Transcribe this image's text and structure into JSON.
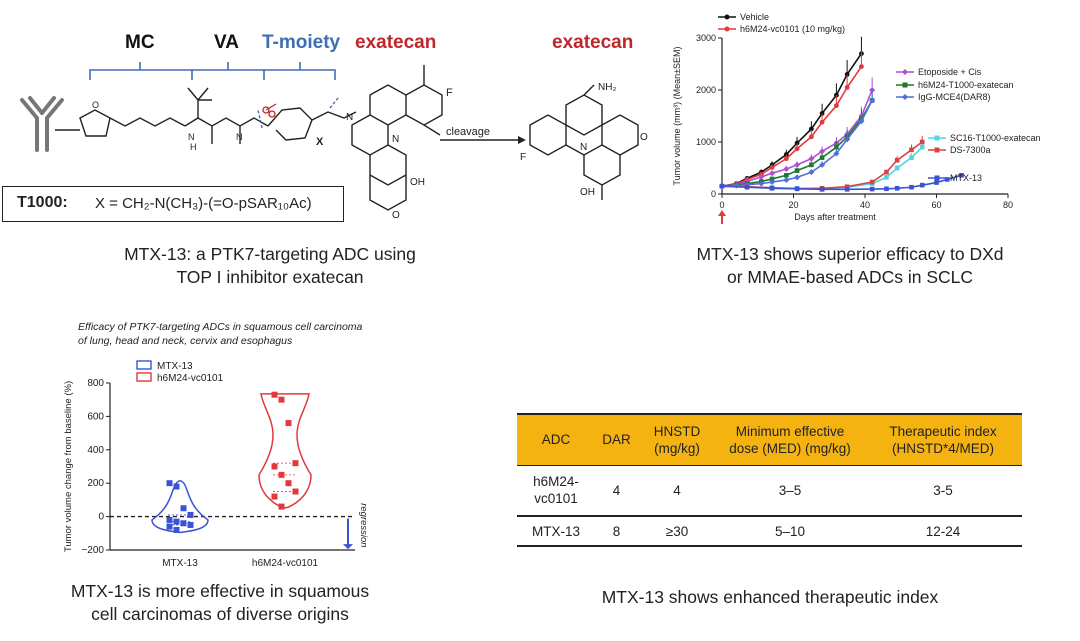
{
  "panel_a": {
    "labels": {
      "mc": "MC",
      "va": "VA",
      "tmoiety": "T-moiety",
      "exatecan": "exatecan"
    },
    "cleavage": "cleavage",
    "product_label": "exatecan",
    "atoms": {
      "x": "X",
      "f": "F",
      "o": "O",
      "n": "N",
      "oh": "OH",
      "h": "H",
      "nh2": "NH₂"
    },
    "t1000_box": {
      "name": "T1000:",
      "formula": "X = CH₂-N(CH₃)-(=O-pSAR₁₀Ac)"
    },
    "caption_line1": "MTX-13: a PTK7-targeting ADC using",
    "caption_line2": "TOP I inhibitor exatecan"
  },
  "panel_b": {
    "caption_line1": "MTX-13 shows superior efficacy to DXd",
    "caption_line2": "or MMAE-based ADCs in SCLC"
  },
  "panel_c": {
    "subtitle_line1": "Efficacy of PTK7-targeting ADCs in squamous cell carcinoma",
    "subtitle_line2": "of lung, head and neck, cervix and esophagus",
    "regression": "regression",
    "caption_line1": "MTX-13 is more effective in squamous",
    "caption_line2": "cell carcinomas of diverse origins"
  },
  "panel_d": {
    "headers": [
      "ADC",
      "DAR",
      "HNSTD (mg/kg)",
      "Minimum effective dose (MED) (mg/kg)",
      "Therapeutic index (HNSTD*4/MED)"
    ],
    "rows": [
      [
        "h6M24-vc0101",
        "4",
        "4",
        "3–5",
        "3-5"
      ],
      [
        "MTX-13",
        "8",
        "≥30",
        "5–10",
        "12-24"
      ]
    ],
    "header_color": "#f5b312",
    "caption": "MTX-13 shows enhanced therapeutic index"
  },
  "chart_data": [
    {
      "type": "line",
      "title": "",
      "xlabel": "Days after treatment",
      "ylabel": "Tumor volume (mm³) (Mean±SEM)",
      "xlim": [
        0,
        80
      ],
      "ylim": [
        0,
        3000
      ],
      "xticks": [
        0,
        20,
        40,
        60,
        80
      ],
      "yticks": [
        0,
        1000,
        2000,
        3000
      ],
      "series": [
        {
          "name": "Vehicle",
          "color": "#111111",
          "marker": "circle",
          "x": [
            0,
            4,
            7,
            11,
            14,
            18,
            21,
            25,
            28,
            32,
            35,
            39
          ],
          "y": [
            150,
            200,
            300,
            420,
            560,
            760,
            980,
            1250,
            1550,
            1900,
            2300,
            2700
          ]
        },
        {
          "name": "h6M24-vc0101 (10 mg/kg)",
          "color": "#e0393e",
          "marker": "circle",
          "x": [
            0,
            4,
            7,
            11,
            14,
            18,
            21,
            25,
            28,
            32,
            35,
            39
          ],
          "y": [
            150,
            190,
            280,
            380,
            510,
            680,
            870,
            1100,
            1380,
            1700,
            2050,
            2450
          ]
        },
        {
          "name": "Etoposide + Cis",
          "color": "#b24fd6",
          "marker": "diamond",
          "x": [
            0,
            4,
            7,
            11,
            14,
            18,
            21,
            25,
            28,
            32,
            35,
            39,
            42
          ],
          "y": [
            150,
            180,
            240,
            330,
            400,
            480,
            560,
            680,
            820,
            980,
            1150,
            1500,
            2000
          ]
        },
        {
          "name": "h6M24-T1000-exatecan",
          "color": "#1b7a2e",
          "marker": "square",
          "x": [
            0,
            4,
            7,
            11,
            14,
            18,
            21,
            25,
            28,
            32,
            35,
            39,
            42
          ],
          "y": [
            150,
            170,
            200,
            240,
            290,
            360,
            450,
            560,
            700,
            900,
            1100,
            1450,
            1800
          ]
        },
        {
          "name": "IgG-MCE4(DAR8)",
          "color": "#4f6fdc",
          "marker": "diamond",
          "x": [
            0,
            4,
            7,
            11,
            14,
            18,
            21,
            25,
            28,
            32,
            35,
            39,
            42
          ],
          "y": [
            150,
            160,
            180,
            200,
            230,
            270,
            320,
            420,
            560,
            780,
            1050,
            1400,
            1800
          ]
        },
        {
          "name": "SC16-T1000-exatecan",
          "color": "#4dd6e3",
          "marker": "square",
          "x": [
            0,
            7,
            14,
            21,
            28,
            35,
            42,
            46,
            49,
            53,
            56
          ],
          "y": [
            150,
            140,
            120,
            110,
            110,
            130,
            200,
            320,
            500,
            700,
            900
          ]
        },
        {
          "name": "DS-7300a",
          "color": "#d24646",
          "marker": "square",
          "x": [
            0,
            7,
            14,
            21,
            28,
            35,
            42,
            46,
            49,
            53,
            56
          ],
          "y": [
            150,
            140,
            120,
            100,
            110,
            140,
            230,
            420,
            650,
            850,
            1000
          ]
        },
        {
          "name": "MTX-13",
          "color": "#3b52d6",
          "marker": "square",
          "x": [
            0,
            7,
            14,
            21,
            28,
            35,
            42,
            46,
            49,
            53,
            56,
            60,
            63,
            67
          ],
          "y": [
            150,
            130,
            110,
            100,
            90,
            90,
            95,
            100,
            110,
            130,
            170,
            220,
            280,
            360
          ]
        }
      ],
      "annotations": [
        "arrow at day 0"
      ]
    },
    {
      "type": "violin",
      "xlabel": "",
      "ylabel": "Tumor volume change from baseline (%)",
      "ylim": [
        -200,
        800
      ],
      "yticks": [
        -200,
        0,
        200,
        400,
        600,
        800
      ],
      "categories": [
        "MTX-13",
        "h6M24-vc0101"
      ],
      "series": [
        {
          "name": "MTX-13",
          "color": "#3b52d6",
          "values": [
            200,
            180,
            50,
            10,
            -20,
            -30,
            -40,
            -50,
            -60,
            -80
          ]
        },
        {
          "name": "h6M24-vc0101",
          "color": "#e0393e",
          "values": [
            730,
            700,
            560,
            320,
            300,
            250,
            200,
            150,
            120,
            60
          ]
        }
      ]
    }
  ]
}
